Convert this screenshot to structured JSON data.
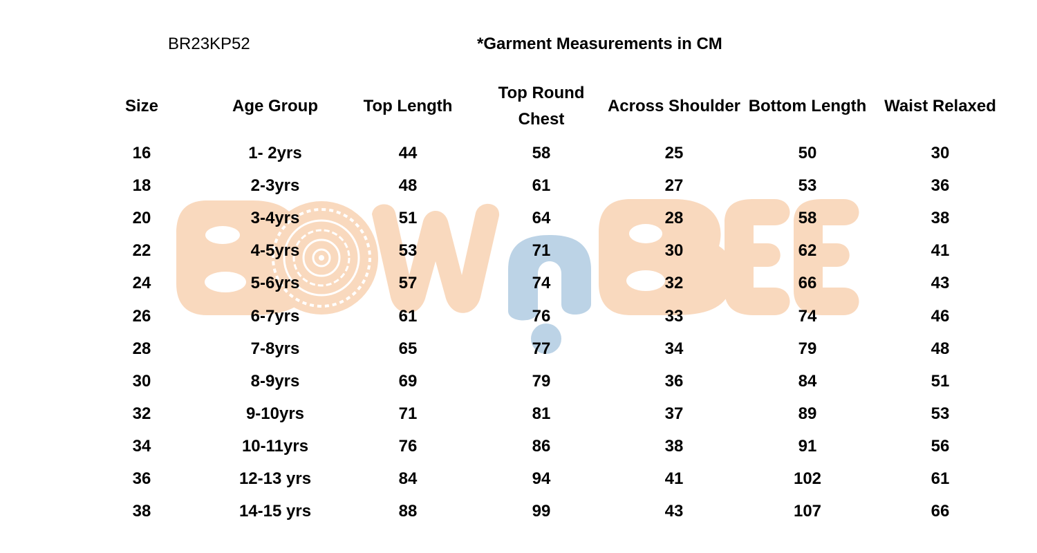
{
  "document": {
    "style_code": "BR23KP52",
    "unit_note": "*Garment Measurements in CM"
  },
  "watermark": {
    "logo_text": "BOWnBEE",
    "colors": {
      "peach": "#F9D9BE",
      "blue": "#BCD3E6",
      "white": "#FFFFFF"
    }
  },
  "table": {
    "headers": [
      "Size",
      "Age Group",
      "Top Length",
      "Top Round Chest",
      "Across Shoulder",
      "Bottom Length",
      "Waist Relaxed"
    ],
    "rows": [
      [
        "16",
        "1- 2yrs",
        "44",
        "58",
        "25",
        "50",
        "30"
      ],
      [
        "18",
        "2-3yrs",
        "48",
        "61",
        "27",
        "53",
        "36"
      ],
      [
        "20",
        "3-4yrs",
        "51",
        "64",
        "28",
        "58",
        "38"
      ],
      [
        "22",
        "4-5yrs",
        "53",
        "71",
        "30",
        "62",
        "41"
      ],
      [
        "24",
        "5-6yrs",
        "57",
        "74",
        "32",
        "66",
        "43"
      ],
      [
        "26",
        "6-7yrs",
        "61",
        "76",
        "33",
        "74",
        "46"
      ],
      [
        "28",
        "7-8yrs",
        "65",
        "77",
        "34",
        "79",
        "48"
      ],
      [
        "30",
        "8-9yrs",
        "69",
        "79",
        "36",
        "84",
        "51"
      ],
      [
        "32",
        "9-10yrs",
        "71",
        "81",
        "37",
        "89",
        "53"
      ],
      [
        "34",
        "10-11yrs",
        "76",
        "86",
        "38",
        "91",
        "56"
      ],
      [
        "36",
        "12-13 yrs",
        "84",
        "94",
        "41",
        "102",
        "61"
      ],
      [
        "38",
        "14-15 yrs",
        "88",
        "99",
        "43",
        "107",
        "66"
      ]
    ]
  }
}
